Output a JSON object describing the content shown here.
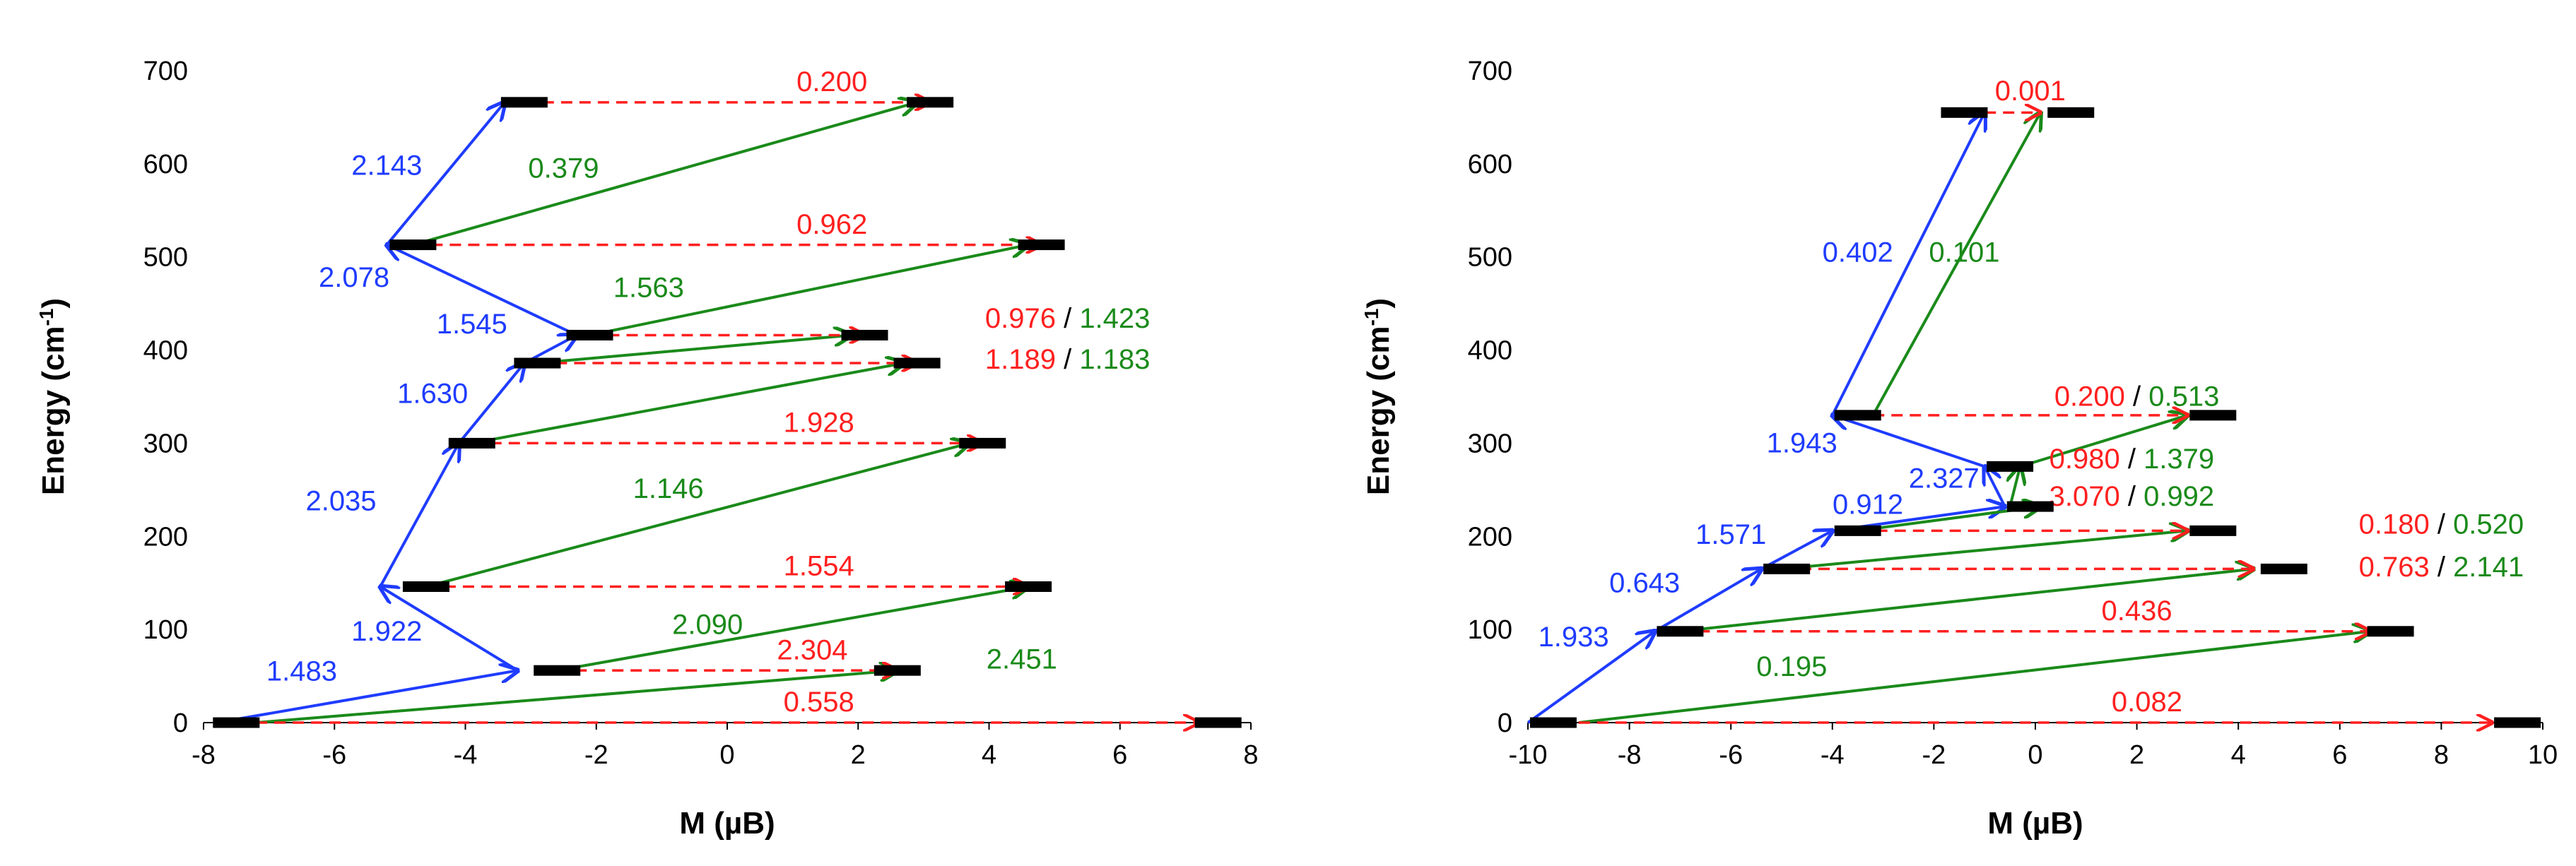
{
  "colors": {
    "blue": "#1f3cff",
    "green": "#1a8a1a",
    "red": "#ff1f1f",
    "black": "#000000"
  },
  "chart_data": [
    {
      "type": "scatter",
      "name": "left-panel",
      "xlabel": "M (µB)",
      "ylabel": "Energy (cm",
      "ylabel_sup": "-1",
      "ylabel_close": ")",
      "xlim": [
        -8,
        8
      ],
      "ylim": [
        0,
        700
      ],
      "xticks": [
        "-8",
        "-6",
        "-4",
        "-2",
        "0",
        "2",
        "4",
        "6",
        "8"
      ],
      "yticks": [
        "0",
        "100",
        "200",
        "300",
        "400",
        "500",
        "600",
        "700"
      ],
      "levels": [
        {
          "M": -7.5,
          "E": 0
        },
        {
          "M": 7.5,
          "E": 0
        },
        {
          "M": -2.6,
          "E": 56
        },
        {
          "M": 2.6,
          "E": 56
        },
        {
          "M": -4.6,
          "E": 146
        },
        {
          "M": 4.6,
          "E": 146
        },
        {
          "M": -3.9,
          "E": 300
        },
        {
          "M": 3.9,
          "E": 300
        },
        {
          "M": -2.9,
          "E": 386
        },
        {
          "M": 2.9,
          "E": 386
        },
        {
          "M": -2.1,
          "E": 416
        },
        {
          "M": 2.1,
          "E": 416
        },
        {
          "M": -4.8,
          "E": 513
        },
        {
          "M": 4.8,
          "E": 513
        },
        {
          "M": -3.1,
          "E": 666
        },
        {
          "M": 3.1,
          "E": 666
        }
      ],
      "arrows": [
        {
          "from": [
            -7.8,
            0
          ],
          "to": [
            -3.2,
            56
          ],
          "color": "blue",
          "label": "1.483",
          "lx": -6.5,
          "ly": 45
        },
        {
          "from": [
            -3.2,
            56
          ],
          "to": [
            -5.3,
            146
          ],
          "color": "blue",
          "label": "1.922",
          "lx": -5.2,
          "ly": 88
        },
        {
          "from": [
            -5.3,
            146
          ],
          "to": [
            -4.1,
            300
          ],
          "color": "blue",
          "label": "2.035",
          "lx": -5.9,
          "ly": 228
        },
        {
          "from": [
            -4.1,
            300
          ],
          "to": [
            -3.1,
            386
          ],
          "color": "blue",
          "label": "1.630",
          "lx": -4.5,
          "ly": 343
        },
        {
          "from": [
            -3.1,
            386
          ],
          "to": [
            -2.3,
            416
          ],
          "color": "blue",
          "label": "1.545",
          "lx": -3.9,
          "ly": 418
        },
        {
          "from": [
            -2.3,
            416
          ],
          "to": [
            -5.2,
            513
          ],
          "color": "blue",
          "label": "2.078",
          "lx": -5.7,
          "ly": 468
        },
        {
          "from": [
            -5.2,
            513
          ],
          "to": [
            -3.4,
            666
          ],
          "color": "blue",
          "label": "2.143",
          "lx": -5.2,
          "ly": 588
        },
        {
          "from": [
            -7.2,
            0
          ],
          "to": [
            2.6,
            56
          ],
          "color": "green",
          "label": "2.451",
          "lx": 4.5,
          "ly": 58
        },
        {
          "from": [
            -2.6,
            56
          ],
          "to": [
            4.6,
            146
          ],
          "color": "green",
          "label": "2.090",
          "lx": -0.3,
          "ly": 95
        },
        {
          "from": [
            -4.6,
            146
          ],
          "to": [
            3.7,
            300
          ],
          "color": "green",
          "label": "1.146",
          "lx": -0.9,
          "ly": 241
        },
        {
          "from": [
            -3.9,
            300
          ],
          "to": [
            2.7,
            386
          ],
          "color": "green",
          "label": "",
          "lx": 0,
          "ly": 0
        },
        {
          "from": [
            -2.9,
            386
          ],
          "to": [
            1.9,
            416
          ],
          "color": "green",
          "label": "",
          "lx": 0,
          "ly": 0
        },
        {
          "from": [
            -2.1,
            416
          ],
          "to": [
            4.6,
            513
          ],
          "color": "green",
          "label": "1.563",
          "lx": -1.2,
          "ly": 457
        },
        {
          "from": [
            -4.8,
            513
          ],
          "to": [
            2.9,
            666
          ],
          "color": "green",
          "label": "0.379",
          "lx": -2.5,
          "ly": 585
        },
        {
          "from": [
            -7.2,
            0
          ],
          "to": [
            7.2,
            0
          ],
          "color": "red",
          "dashed": true,
          "label": "0.558",
          "lx": 1.4,
          "ly": 12
        },
        {
          "from": [
            -2.6,
            56
          ],
          "to": [
            2.6,
            56
          ],
          "color": "red",
          "dashed": true,
          "label": "2.304",
          "lx": 1.3,
          "ly": 68
        },
        {
          "from": [
            -4.6,
            146
          ],
          "to": [
            4.6,
            146
          ],
          "color": "red",
          "dashed": true,
          "label": "1.554",
          "lx": 1.4,
          "ly": 158
        },
        {
          "from": [
            -3.9,
            300
          ],
          "to": [
            3.9,
            300
          ],
          "color": "red",
          "dashed": true,
          "label": "1.928",
          "lx": 1.4,
          "ly": 312
        },
        {
          "from": [
            -2.9,
            386
          ],
          "to": [
            2.9,
            386
          ],
          "color": "red",
          "dashed": true,
          "label": "",
          "lx": 0,
          "ly": 0
        },
        {
          "from": [
            -2.1,
            416
          ],
          "to": [
            2.1,
            416
          ],
          "color": "red",
          "dashed": true,
          "label": "",
          "lx": 0,
          "ly": 0
        },
        {
          "from": [
            -4.8,
            513
          ],
          "to": [
            4.8,
            513
          ],
          "color": "red",
          "dashed": true,
          "label": "0.962",
          "lx": 1.6,
          "ly": 525
        },
        {
          "from": [
            -3.1,
            666
          ],
          "to": [
            3.1,
            666
          ],
          "color": "red",
          "dashed": true,
          "label": "0.200",
          "lx": 1.6,
          "ly": 678
        }
      ],
      "side_labels": [
        {
          "red": "0.976",
          "green": "1.423",
          "lx": 5.2,
          "ly": 424
        },
        {
          "red": "1.189",
          "green": "1.183",
          "lx": 5.2,
          "ly": 380
        }
      ]
    },
    {
      "type": "scatter",
      "name": "right-panel",
      "xlabel": "M (µB)",
      "ylabel": "Energy (cm",
      "ylabel_sup": "-1",
      "ylabel_close": ")",
      "xlim": [
        -10,
        10
      ],
      "ylim": [
        0,
        700
      ],
      "xticks": [
        "-10",
        "-8",
        "-6",
        "-4",
        "-2",
        "0",
        "2",
        "4",
        "6",
        "8",
        "10"
      ],
      "yticks": [
        "0",
        "100",
        "200",
        "300",
        "400",
        "500",
        "600",
        "700"
      ],
      "levels": [
        {
          "M": -9.5,
          "E": 0
        },
        {
          "M": 9.5,
          "E": 0
        },
        {
          "M": -7.0,
          "E": 98
        },
        {
          "M": 7.0,
          "E": 98
        },
        {
          "M": -4.9,
          "E": 165
        },
        {
          "M": 4.9,
          "E": 165
        },
        {
          "M": -3.5,
          "E": 206
        },
        {
          "M": 3.5,
          "E": 206
        },
        {
          "M": -0.1,
          "E": 232
        },
        {
          "M": -0.5,
          "E": 275
        },
        {
          "M": -3.5,
          "E": 330
        },
        {
          "M": 3.5,
          "E": 330
        },
        {
          "M": -1.4,
          "E": 655
        },
        {
          "M": 0.7,
          "E": 655
        }
      ],
      "arrows": [
        {
          "from": [
            -10,
            0
          ],
          "to": [
            -7.5,
            98
          ],
          "color": "blue",
          "label": "1.933",
          "lx": -9.1,
          "ly": 82
        },
        {
          "from": [
            -7.5,
            98
          ],
          "to": [
            -5.4,
            165
          ],
          "color": "blue",
          "label": "0.643",
          "lx": -7.7,
          "ly": 140
        },
        {
          "from": [
            -5.4,
            165
          ],
          "to": [
            -4.0,
            206
          ],
          "color": "blue",
          "label": "1.571",
          "lx": -6.0,
          "ly": 192
        },
        {
          "from": [
            -4.0,
            206
          ],
          "to": [
            -0.6,
            232
          ],
          "color": "blue",
          "label": "0.912",
          "lx": -3.3,
          "ly": 224
        },
        {
          "from": [
            -0.6,
            232
          ],
          "to": [
            -1.0,
            275
          ],
          "color": "blue",
          "label": "2.327",
          "lx": -1.8,
          "ly": 252
        },
        {
          "from": [
            -1.0,
            275
          ],
          "to": [
            -4.0,
            330
          ],
          "color": "blue",
          "label": "1.943",
          "lx": -4.6,
          "ly": 290
        },
        {
          "from": [
            -4.0,
            330
          ],
          "to": [
            -1.0,
            655
          ],
          "color": "blue",
          "label": "0.402",
          "lx": -3.5,
          "ly": 495
        },
        {
          "from": [
            -9.0,
            0
          ],
          "to": [
            6.6,
            98
          ],
          "color": "green",
          "label": "0.195",
          "lx": -4.8,
          "ly": 50
        },
        {
          "from": [
            -7.0,
            98
          ],
          "to": [
            4.3,
            165
          ],
          "color": "green",
          "label": "",
          "lx": 0,
          "ly": 0
        },
        {
          "from": [
            -5.0,
            165
          ],
          "to": [
            3.0,
            206
          ],
          "color": "green",
          "label": "",
          "lx": 0,
          "ly": 0
        },
        {
          "from": [
            -3.5,
            206
          ],
          "to": [
            0.1,
            232
          ],
          "color": "green",
          "label": "",
          "lx": 0,
          "ly": 0
        },
        {
          "from": [
            -0.5,
            232
          ],
          "to": [
            -0.3,
            275
          ],
          "color": "green",
          "label": "",
          "lx": 0,
          "ly": 0
        },
        {
          "from": [
            -0.3,
            275
          ],
          "to": [
            3.0,
            330
          ],
          "color": "green",
          "label": "",
          "lx": 0,
          "ly": 0
        },
        {
          "from": [
            -3.2,
            330
          ],
          "to": [
            0.1,
            655
          ],
          "color": "green",
          "label": "0.101",
          "lx": -1.4,
          "ly": 495
        },
        {
          "from": [
            -9.0,
            0
          ],
          "to": [
            9.0,
            0
          ],
          "color": "red",
          "dashed": true,
          "label": "0.082",
          "lx": 2.2,
          "ly": 12
        },
        {
          "from": [
            -7.0,
            98
          ],
          "to": [
            6.6,
            98
          ],
          "color": "red",
          "dashed": true,
          "label": "0.436",
          "lx": 2.0,
          "ly": 110
        },
        {
          "from": [
            -5.0,
            165
          ],
          "to": [
            4.3,
            165
          ],
          "color": "red",
          "dashed": true,
          "label": "",
          "lx": 0,
          "ly": 0
        },
        {
          "from": [
            -3.5,
            206
          ],
          "to": [
            3.0,
            206
          ],
          "color": "red",
          "dashed": true,
          "label": "",
          "lx": 0,
          "ly": 0
        },
        {
          "from": [
            -3.2,
            330
          ],
          "to": [
            3.0,
            330
          ],
          "color": "red",
          "dashed": true,
          "label": "",
          "lx": 0,
          "ly": 0
        },
        {
          "from": [
            -1.0,
            655
          ],
          "to": [
            0.1,
            655
          ],
          "color": "red",
          "dashed": true,
          "label": "0.001",
          "lx": -0.1,
          "ly": 668
        }
      ],
      "side_labels": [
        {
          "red": "0.200",
          "green": "0.513",
          "lx": 2.0,
          "ly": 340
        },
        {
          "red": "0.980",
          "green": "1.379",
          "lx": 1.9,
          "ly": 273
        },
        {
          "red": "3.070",
          "green": "0.992",
          "lx": 1.9,
          "ly": 233
        },
        {
          "red": "0.180",
          "green": "0.520",
          "lx": 8.0,
          "ly": 203
        },
        {
          "red": "0.763",
          "green": "2.141",
          "lx": 8.0,
          "ly": 157
        }
      ]
    }
  ]
}
